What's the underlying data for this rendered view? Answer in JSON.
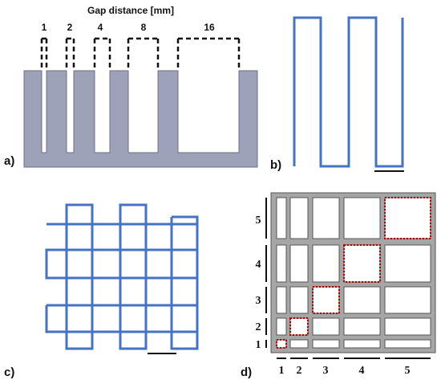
{
  "panel_a": {
    "label": "a)",
    "title": "Gap distance [mm]",
    "gaps": [
      "1",
      "2",
      "4",
      "8",
      "16"
    ],
    "colors": {
      "comb": "#9ea2b8",
      "outline": "#6b6f86"
    }
  },
  "panel_b": {
    "label": "b)",
    "colors": {
      "trace": "#4472c4"
    }
  },
  "panel_c": {
    "label": "c)",
    "colors": {
      "trace": "#4472c4"
    }
  },
  "panel_d": {
    "label": "d)",
    "row_labels": [
      "5",
      "4",
      "3",
      "2",
      "1"
    ],
    "col_labels": [
      "1",
      "2",
      "3",
      "4",
      "5"
    ],
    "colors": {
      "grid": "#a6a6a6",
      "highlight": "#c00000"
    }
  }
}
